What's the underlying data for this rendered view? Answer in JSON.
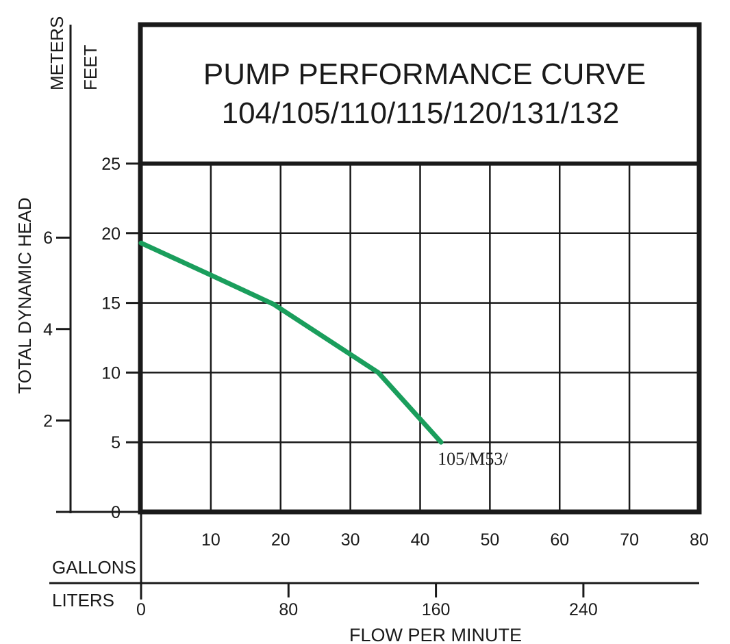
{
  "chart_data": {
    "type": "line",
    "title_line1": "PUMP PERFORMANCE CURVE",
    "title_line2": "104/105/110/115/120/131/132",
    "y_axis_title": "TOTAL DYNAMIC HEAD",
    "y_unit_meters": "METERS",
    "y_unit_feet": "FEET",
    "x_axis_title": "FLOW PER MINUTE",
    "x_unit_gallons": "GALLONS",
    "x_unit_liters": "LITERS",
    "feet_ticks": [
      0,
      5,
      10,
      15,
      20,
      25
    ],
    "meters_ticks": [
      2,
      4,
      6
    ],
    "gallons_ticks": [
      10,
      20,
      30,
      40,
      50,
      60,
      70,
      80
    ],
    "liters_ticks": [
      0,
      80,
      160,
      240
    ],
    "xlim_gallons": [
      0,
      80
    ],
    "ylim_feet": [
      0,
      25
    ],
    "grid": true,
    "series": [
      {
        "name": "105/M53/",
        "color": "#1a9e5c",
        "x": [
          0,
          10,
          19,
          34,
          43
        ],
        "y": [
          19.3,
          17,
          14.9,
          10,
          5
        ]
      }
    ]
  }
}
